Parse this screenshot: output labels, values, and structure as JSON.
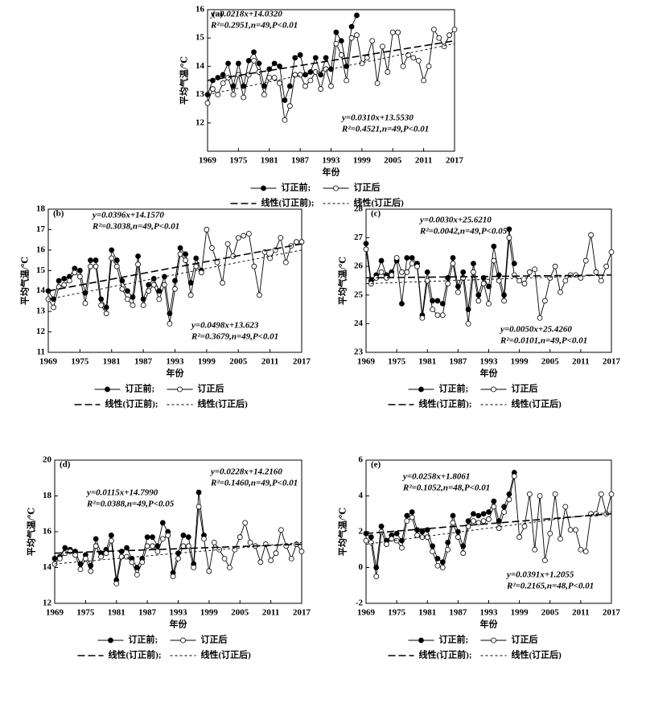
{
  "chart_data": [
    {
      "type": "line",
      "label": "(a)",
      "ylabel": "平均气温/℃",
      "xlabel": "年份",
      "x": [
        1969,
        1970,
        1971,
        1972,
        1973,
        1974,
        1975,
        1976,
        1977,
        1978,
        1979,
        1980,
        1981,
        1982,
        1983,
        1984,
        1985,
        1986,
        1987,
        1988,
        1989,
        1990,
        1991,
        1992,
        1993,
        1994,
        1995,
        1996,
        1997,
        1998,
        1999,
        2000,
        2001,
        2002,
        2003,
        2004,
        2005,
        2006,
        2007,
        2008,
        2009,
        2010,
        2011,
        2012,
        2013,
        2014,
        2015,
        2016,
        2017
      ],
      "xlim": [
        1969,
        2017
      ],
      "xticks": [
        1969,
        1975,
        1981,
        1987,
        1993,
        1999,
        2005,
        2011,
        2017
      ],
      "ylim": [
        11,
        16
      ],
      "yticks": [
        12,
        13,
        14,
        15,
        16
      ],
      "series": [
        {
          "name": "订正前;",
          "color": "#000000",
          "marker": "filled",
          "values": [
            13.0,
            13.5,
            13.6,
            13.7,
            14.1,
            13.3,
            14.1,
            13.3,
            14.2,
            14.5,
            14.1,
            13.3,
            13.9,
            14.1,
            14.0,
            12.8,
            13.3,
            14.3,
            14.4,
            13.7,
            13.8,
            14.3,
            13.7,
            14.3,
            13.9,
            15.2,
            14.9,
            14.0,
            15.4,
            15.8,
            null,
            null,
            null,
            null,
            null,
            null,
            null,
            null,
            null,
            null,
            null,
            null,
            null,
            null,
            null,
            null,
            null,
            null,
            null
          ]
        },
        {
          "name": "订正后",
          "color": "#000000",
          "marker": "open",
          "values": [
            12.7,
            13.2,
            13.0,
            13.4,
            13.6,
            13.0,
            13.7,
            12.9,
            13.7,
            14.2,
            13.8,
            13.0,
            13.6,
            13.6,
            13.4,
            12.1,
            12.6,
            13.7,
            13.7,
            13.3,
            13.5,
            13.8,
            13.2,
            13.9,
            13.3,
            14.8,
            14.4,
            13.5,
            15.0,
            15.1,
            14.1,
            14.3,
            14.9,
            13.4,
            14.7,
            13.8,
            15.2,
            15.2,
            14.0,
            14.4,
            14.3,
            14.2,
            13.5,
            14.0,
            15.3,
            15.0,
            14.7,
            15.1,
            15.3
          ]
        },
        {
          "name": "线性(订正前);",
          "color": "#000000",
          "dash": "long",
          "x": [
            1969,
            2017
          ],
          "values": [
            13.5,
            14.9
          ]
        },
        {
          "name": "线性(订正后)",
          "color": "#000000",
          "dash": "short",
          "x": [
            1969,
            2017
          ],
          "values": [
            13.0,
            14.8
          ]
        }
      ],
      "annotations": [
        [
          "y=0.0218x+14.0320",
          "R²=0.2951,n=49,P<0.01"
        ],
        [
          "y=0.0310x+13.5530",
          "R²=0.4521,n=49,P<0.01"
        ]
      ]
    },
    {
      "type": "line",
      "label": "(b)",
      "ylabel": "平均气温/℃",
      "xlabel": "年份",
      "x": [
        1969,
        1970,
        1971,
        1972,
        1973,
        1974,
        1975,
        1976,
        1977,
        1978,
        1979,
        1980,
        1981,
        1982,
        1983,
        1984,
        1985,
        1986,
        1987,
        1988,
        1989,
        1990,
        1991,
        1992,
        1993,
        1994,
        1995,
        1996,
        1997,
        1998,
        1999,
        2000,
        2001,
        2002,
        2003,
        2004,
        2005,
        2006,
        2007,
        2008,
        2009,
        2010,
        2011,
        2012,
        2013,
        2014,
        2015,
        2016,
        2017
      ],
      "xlim": [
        1969,
        2017
      ],
      "xticks": [
        1969,
        1975,
        1981,
        1987,
        1993,
        1999,
        2005,
        2011,
        2017
      ],
      "ylim": [
        11,
        18
      ],
      "yticks": [
        11,
        12,
        13,
        14,
        15,
        16,
        17,
        18
      ],
      "series": [
        {
          "name": "订正前;",
          "color": "#000000",
          "marker": "filled",
          "values": [
            14.0,
            13.6,
            14.5,
            14.6,
            14.7,
            15.1,
            15.0,
            13.9,
            15.5,
            15.5,
            13.6,
            13.2,
            16.0,
            15.5,
            14.5,
            14.0,
            13.7,
            15.7,
            13.6,
            14.3,
            14.6,
            14.0,
            14.7,
            12.9,
            14.5,
            16.1,
            15.8,
            14.4,
            15.6,
            15.0,
            null,
            null,
            null,
            null,
            null,
            null,
            null,
            null,
            null,
            null,
            null,
            null,
            null,
            null,
            null,
            null,
            null,
            null,
            null
          ]
        },
        {
          "name": "订正后",
          "color": "#000000",
          "marker": "open",
          "values": [
            13.6,
            13.2,
            14.2,
            14.3,
            14.5,
            14.9,
            14.7,
            13.4,
            15.2,
            15.2,
            13.3,
            12.9,
            15.6,
            15.2,
            14.1,
            13.6,
            13.3,
            15.3,
            13.3,
            14.0,
            14.3,
            13.6,
            14.3,
            12.4,
            14.1,
            15.8,
            15.5,
            13.8,
            15.2,
            14.9,
            17.0,
            16.1,
            15.4,
            14.4,
            16.3,
            15.7,
            16.6,
            16.7,
            16.8,
            15.2,
            13.8,
            15.9,
            15.6,
            16.0,
            16.6,
            15.4,
            16.2,
            16.4,
            16.4
          ]
        },
        {
          "name": "线性(订正前);",
          "color": "#000000",
          "dash": "long",
          "x": [
            1969,
            2017
          ],
          "values": [
            14.0,
            16.3
          ]
        },
        {
          "name": "线性(订正后)",
          "color": "#000000",
          "dash": "short",
          "x": [
            1969,
            2017
          ],
          "values": [
            13.6,
            16.0
          ]
        }
      ],
      "annotations": [
        [
          "y=0.0396x+14.1570",
          "R²=0.3038,n=49,P<0.01"
        ],
        [
          "y=0.0498x+13.623",
          "R²=0.3679,n=49,P<0.01"
        ]
      ]
    },
    {
      "type": "line",
      "label": "(c)",
      "ylabel": "平均气温/℃",
      "xlabel": "年份",
      "x": [
        1969,
        1970,
        1971,
        1972,
        1973,
        1974,
        1975,
        1976,
        1977,
        1978,
        1979,
        1980,
        1981,
        1982,
        1983,
        1984,
        1985,
        1986,
        1987,
        1988,
        1989,
        1990,
        1991,
        1992,
        1993,
        1994,
        1995,
        1996,
        1997,
        1998,
        1999,
        2000,
        2001,
        2002,
        2003,
        2004,
        2005,
        2006,
        2007,
        2008,
        2009,
        2010,
        2011,
        2012,
        2013,
        2014,
        2015,
        2016,
        2017
      ],
      "xlim": [
        1969,
        2017
      ],
      "xticks": [
        1969,
        1975,
        1981,
        1987,
        1993,
        1999,
        2005,
        2011,
        2017
      ],
      "ylim": [
        23,
        28
      ],
      "yticks": [
        23,
        24,
        25,
        26,
        27,
        28
      ],
      "series": [
        {
          "name": "订正前;",
          "color": "#000000",
          "marker": "filled",
          "values": [
            26.8,
            25.5,
            25.7,
            26.2,
            25.7,
            25.8,
            26.2,
            24.7,
            26.3,
            26.3,
            26.1,
            24.3,
            25.8,
            24.8,
            24.8,
            24.7,
            25.6,
            26.3,
            25.3,
            25.8,
            24.5,
            26.1,
            25.0,
            25.6,
            25.3,
            26.7,
            25.7,
            25.0,
            27.3,
            26.1,
            null,
            null,
            null,
            null,
            null,
            null,
            null,
            null,
            null,
            null,
            null,
            null,
            null,
            null,
            null,
            null,
            null,
            null,
            null
          ]
        },
        {
          "name": "订正后",
          "color": "#000000",
          "marker": "open",
          "values": [
            26.6,
            25.4,
            25.6,
            25.8,
            25.6,
            25.7,
            26.3,
            25.8,
            25.8,
            26.1,
            26.0,
            24.2,
            25.5,
            24.5,
            24.3,
            24.3,
            25.4,
            26.1,
            25.1,
            25.6,
            24.0,
            25.8,
            24.8,
            25.4,
            24.7,
            26.2,
            25.5,
            24.8,
            27.0,
            25.7,
            25.5,
            25.4,
            25.8,
            25.9,
            24.2,
            24.8,
            25.6,
            26.0,
            25.1,
            25.5,
            25.7,
            25.7,
            25.6,
            26.2,
            27.1,
            25.8,
            25.5,
            26.0,
            26.5
          ]
        },
        {
          "name": "线性(订正前);",
          "color": "#000000",
          "dash": "long",
          "x": [
            1969,
            2017
          ],
          "values": [
            25.6,
            25.7
          ]
        },
        {
          "name": "线性(订正后)",
          "color": "#000000",
          "dash": "short",
          "x": [
            1969,
            2017
          ],
          "values": [
            25.4,
            25.7
          ]
        }
      ],
      "annotations": [
        [
          "y=0.0030x+25.6210",
          "R²=0.0042,n=49,P<0.05"
        ],
        [
          "y=0.0050x+25.4260",
          "R²=0.0101,n=49,P<0.01"
        ]
      ]
    },
    {
      "type": "line",
      "label": "(d)",
      "ylabel": "平均气温/℃",
      "xlabel": "年份",
      "x": [
        1969,
        1970,
        1971,
        1972,
        1973,
        1974,
        1975,
        1976,
        1977,
        1978,
        1979,
        1980,
        1981,
        1982,
        1983,
        1984,
        1985,
        1986,
        1987,
        1988,
        1989,
        1990,
        1991,
        1992,
        1993,
        1994,
        1995,
        1996,
        1997,
        1998,
        1999,
        2000,
        2001,
        2002,
        2003,
        2004,
        2005,
        2006,
        2007,
        2008,
        2009,
        2010,
        2011,
        2012,
        2013,
        2014,
        2015,
        2016,
        2017
      ],
      "xlim": [
        1969,
        2017
      ],
      "xticks": [
        1969,
        1975,
        1981,
        1987,
        1993,
        1999,
        2005,
        2011,
        2017
      ],
      "ylim": [
        12,
        20
      ],
      "yticks": [
        12,
        14,
        16,
        18,
        20
      ],
      "series": [
        {
          "name": "订正前;",
          "color": "#000000",
          "marker": "filled",
          "values": [
            14.5,
            14.6,
            15.1,
            15.0,
            14.9,
            14.2,
            14.7,
            14.1,
            15.6,
            14.8,
            15.0,
            15.8,
            13.3,
            14.9,
            15.1,
            14.5,
            14.0,
            14.5,
            15.7,
            15.7,
            15.2,
            16.5,
            16.0,
            13.7,
            14.8,
            15.8,
            15.7,
            14.2,
            18.2,
            15.8,
            null,
            null,
            null,
            null,
            null,
            null,
            null,
            null,
            null,
            null,
            null,
            null,
            null,
            null,
            null,
            null,
            null,
            null,
            null
          ]
        },
        {
          "name": "订正后",
          "color": "#000000",
          "marker": "open",
          "values": [
            14.2,
            14.5,
            14.8,
            14.9,
            14.7,
            13.9,
            14.5,
            13.8,
            15.2,
            14.6,
            14.8,
            15.5,
            13.1,
            14.6,
            14.6,
            14.3,
            13.6,
            14.3,
            15.2,
            15.2,
            14.9,
            15.6,
            15.8,
            13.5,
            14.5,
            15.2,
            15.2,
            14.0,
            17.4,
            15.6,
            13.8,
            15.4,
            15.0,
            14.5,
            14.0,
            15.0,
            15.7,
            16.5,
            15.4,
            15.2,
            14.3,
            15.3,
            14.4,
            14.8,
            16.1,
            15.2,
            14.5,
            15.3,
            14.9
          ]
        },
        {
          "name": "线性(订正前);",
          "color": "#000000",
          "dash": "long",
          "x": [
            1969,
            2017
          ],
          "values": [
            14.8,
            15.3
          ]
        },
        {
          "name": "线性(订正后)",
          "color": "#000000",
          "dash": "short",
          "x": [
            1969,
            2017
          ],
          "values": [
            14.2,
            15.4
          ]
        }
      ],
      "annotations": [
        [
          "y=0.0115x+14.7990",
          "R²=0.0388,n=49,P<0.05"
        ],
        [
          "y=0.0228x+14.2160",
          "R²=0.1460,n=49,P<0.01"
        ]
      ]
    },
    {
      "type": "line",
      "label": "(e)",
      "ylabel": "平均气温/℃",
      "xlabel": "年份",
      "x": [
        1969,
        1970,
        1971,
        1972,
        1973,
        1974,
        1975,
        1976,
        1977,
        1978,
        1979,
        1980,
        1981,
        1982,
        1983,
        1984,
        1985,
        1986,
        1987,
        1988,
        1989,
        1990,
        1991,
        1992,
        1993,
        1994,
        1995,
        1996,
        1997,
        1998,
        1999,
        2000,
        2001,
        2002,
        2003,
        2004,
        2005,
        2006,
        2007,
        2008,
        2009,
        2010,
        2011,
        2012,
        2013,
        2014,
        2015,
        2016,
        2017
      ],
      "xlim": [
        1969,
        2017
      ],
      "xticks": [
        1969,
        1975,
        1981,
        1987,
        1993,
        1999,
        2005,
        2011,
        2017
      ],
      "ylim": [
        -2,
        6
      ],
      "yticks": [
        -2,
        0,
        2,
        4,
        6
      ],
      "series": [
        {
          "name": "订正前;",
          "color": "#000000",
          "marker": "filled",
          "values": [
            1.9,
            1.7,
            0.0,
            2.3,
            1.5,
            1.8,
            1.9,
            1.5,
            2.9,
            3.1,
            2.1,
            2.0,
            2.1,
            1.2,
            0.5,
            0.3,
            1.4,
            2.9,
            2.0,
            1.2,
            2.6,
            3.0,
            2.9,
            3.0,
            3.1,
            3.7,
            2.6,
            3.4,
            4.1,
            5.3,
            null,
            null,
            null,
            null,
            null,
            null,
            null,
            null,
            null,
            null,
            null,
            null,
            null,
            null,
            null,
            null,
            null,
            null,
            null
          ]
        },
        {
          "name": "订正后",
          "color": "#000000",
          "marker": "open",
          "values": [
            1.5,
            1.4,
            -0.5,
            2.0,
            1.3,
            1.6,
            1.5,
            1.1,
            2.6,
            2.8,
            1.8,
            1.7,
            1.7,
            0.9,
            0.1,
            0.0,
            1.0,
            2.5,
            1.7,
            0.8,
            2.3,
            2.6,
            2.5,
            2.6,
            2.7,
            3.4,
            2.2,
            3.1,
            3.8,
            5.1,
            1.7,
            2.3,
            4.1,
            1.0,
            4.0,
            0.4,
            1.9,
            4.1,
            1.6,
            3.4,
            2.1,
            2.1,
            1.0,
            0.9,
            3.0,
            3.0,
            4.1,
            3.0,
            4.1
          ]
        },
        {
          "name": "线性(订正前);",
          "color": "#000000",
          "dash": "long",
          "x": [
            1969,
            2017
          ],
          "values": [
            1.9,
            3.0
          ]
        },
        {
          "name": "线性(订正后)",
          "color": "#000000",
          "dash": "short",
          "x": [
            1969,
            2017
          ],
          "values": [
            1.3,
            3.1
          ]
        }
      ],
      "annotations": [
        [
          "y=0.0258x+1.8061",
          "R²=0.1052,n=48,P<0.01"
        ],
        [
          "y=0.0391x+1.2055",
          "R²=0.2165,n=48,P<0.01"
        ]
      ]
    }
  ]
}
